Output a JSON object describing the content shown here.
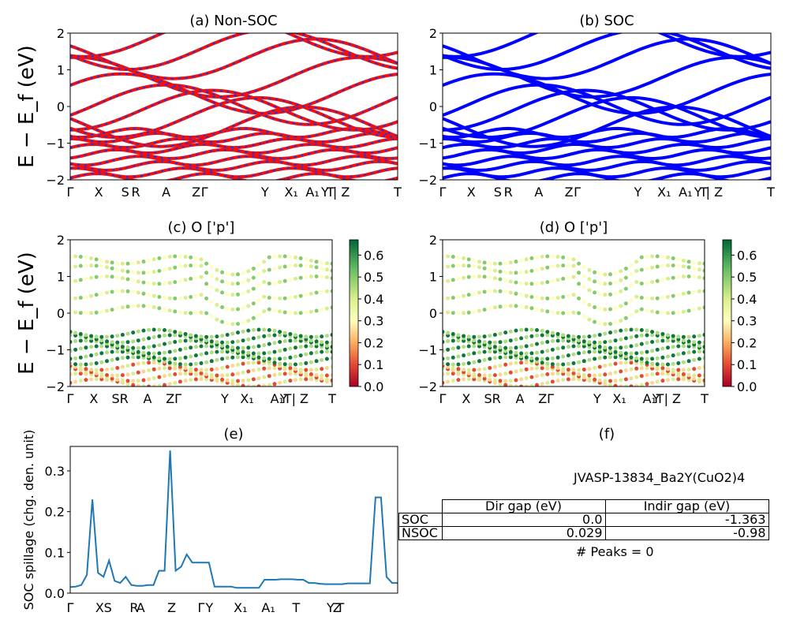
{
  "figure": {
    "panel_titles": [
      "(a) Non-SOC",
      "(b) SOC",
      "(c)  O ['p']",
      "(d) O ['p']",
      "(e)",
      "(f)"
    ],
    "band_ylabel": "E − E_f (eV)",
    "band_yticks": [
      "2",
      "1",
      "0",
      "−1",
      "−2"
    ],
    "band_ylim": [
      -2,
      2
    ],
    "kpath_labels_ab": [
      "Γ",
      "X",
      "S",
      "R",
      "A",
      "Z",
      "Γ",
      "Y",
      "X₁",
      "A₁",
      "T",
      "Y | Z",
      "T"
    ],
    "kpath_labels_cd": [
      "Γ",
      "X",
      "SR",
      "A",
      "ZΓ",
      "Y",
      "X₁",
      "A₁",
      "T",
      "Y | Z",
      "T"
    ],
    "colorbar_ticks": [
      "0.6",
      "0.5",
      "0.4",
      "0.3",
      "0.2",
      "0.1",
      "0.0"
    ],
    "spillage_ylabel": "SOC spillage (chg. den. unit)",
    "spillage_yticks": [
      "0.3",
      "0.2",
      "0.1",
      "0.0"
    ],
    "spillage_xlabels": [
      "Γ",
      "X",
      "S",
      "R",
      "A",
      "Z",
      "Γ",
      "Y",
      "X₁",
      "A₁",
      "T",
      "Y",
      "Z",
      "T"
    ],
    "material_id": "JVASP-13834_Ba2Y(CuO2)4",
    "gap_table": {
      "headers": [
        "",
        "Dir gap (eV)",
        "Indir gap (eV)"
      ],
      "rows": [
        {
          "label": "SOC",
          "dir": "0.0",
          "indir": "-1.363"
        },
        {
          "label": "NSOC",
          "dir": "0.029",
          "indir": "-0.98"
        }
      ]
    },
    "peaks_text": "# Peaks = 0",
    "colors": {
      "non_soc": "#ee1111",
      "non_soc_dash": "#2233dd",
      "soc": "#0000ff",
      "spillage": "#1f77b4"
    }
  },
  "chart_data": [
    {
      "type": "line",
      "title": "(a) Non-SOC",
      "ylabel": "E − E_f (eV)",
      "ylim": [
        -2,
        2
      ],
      "x_ticks": [
        "Γ",
        "X",
        "S",
        "R",
        "A",
        "Z",
        "Γ",
        "Y",
        "X₁",
        "A₁",
        "T",
        "Y | Z",
        "T"
      ],
      "series": [
        {
          "name": "",
          "values": [
            -1.8,
            -1.5,
            -1.2,
            -0.9,
            -0.7,
            0.0,
            0.3,
            1.2,
            1.5,
            2.0
          ]
        }
      ]
    },
    {
      "type": "line",
      "title": "(b) SOC",
      "ylabel": "",
      "ylim": [
        -2,
        2
      ],
      "x_ticks": [
        "Γ",
        "X",
        "S",
        "R",
        "A",
        "Z",
        "Γ",
        "Y",
        "X₁",
        "A₁",
        "T",
        "Y | Z",
        "T"
      ],
      "series": [
        {
          "name": "",
          "values": [
            -1.8,
            -1.5,
            -1.2,
            -0.9,
            -0.7,
            0.0,
            0.3,
            1.2,
            1.5,
            2.0
          ]
        }
      ]
    },
    {
      "type": "scatter",
      "title": "(c)  O ['p']",
      "ylabel": "E − E_f (eV)",
      "ylim": [
        -2,
        2
      ],
      "colorbar_range": [
        0.0,
        0.67
      ],
      "x_ticks": [
        "Γ",
        "X",
        "SR",
        "A",
        "ZΓ",
        "Y",
        "X₁",
        "A₁",
        "T",
        "Y | Z",
        "T"
      ]
    },
    {
      "type": "scatter",
      "title": "(d) O ['p']",
      "ylabel": "",
      "ylim": [
        -2,
        2
      ],
      "colorbar_range": [
        0.0,
        0.67
      ],
      "x_ticks": [
        "Γ",
        "X",
        "SR",
        "A",
        "ZΓ",
        "Y",
        "X₁",
        "A₁",
        "T",
        "Y | Z",
        "T"
      ]
    },
    {
      "type": "line",
      "title": "(e)",
      "ylabel": "SOC spillage (chg. den. unit)",
      "ylim": [
        0,
        0.36
      ],
      "x": [
        0,
        1,
        2,
        3,
        4,
        5,
        6,
        7,
        8,
        9,
        10,
        11,
        12,
        13,
        14,
        15,
        16,
        17,
        18,
        19,
        20,
        21,
        22,
        23,
        24,
        25,
        26,
        27,
        28,
        29,
        30,
        31,
        32,
        33,
        34,
        35,
        36,
        37,
        38,
        39,
        40,
        41,
        42,
        43,
        44,
        45,
        46,
        47,
        48,
        49,
        50,
        51,
        52,
        53,
        54,
        55,
        56,
        57,
        58,
        59
      ],
      "values": [
        0.015,
        0.016,
        0.02,
        0.045,
        0.23,
        0.05,
        0.04,
        0.08,
        0.03,
        0.025,
        0.04,
        0.02,
        0.018,
        0.018,
        0.02,
        0.02,
        0.055,
        0.055,
        0.35,
        0.055,
        0.065,
        0.095,
        0.075,
        0.075,
        0.075,
        0.075,
        0.016,
        0.016,
        0.016,
        0.016,
        0.013,
        0.013,
        0.013,
        0.013,
        0.013,
        0.033,
        0.033,
        0.033,
        0.034,
        0.034,
        0.034,
        0.033,
        0.033,
        0.025,
        0.025,
        0.023,
        0.022,
        0.022,
        0.022,
        0.022,
        0.024,
        0.024,
        0.024,
        0.024,
        0.024,
        0.235,
        0.235,
        0.04,
        0.025,
        0.025
      ],
      "x_ticks": [
        "Γ",
        "X",
        "S",
        "R",
        "A",
        "Z",
        "Γ",
        "Y",
        "X₁",
        "A₁",
        "T",
        "Y",
        "Z",
        "T"
      ]
    }
  ]
}
